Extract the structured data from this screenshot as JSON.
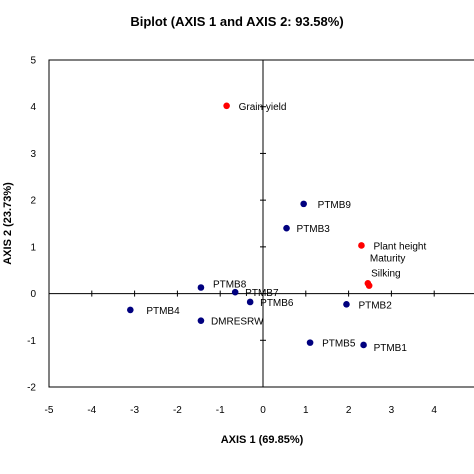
{
  "chart_data": {
    "type": "scatter",
    "title": "Biplot (AXIS 1 and AXIS 2: 93.58%)",
    "xlabel": "AXIS 1 (69.85%)",
    "ylabel": "AXIS 2 (23.73%)",
    "xlim": [
      -5,
      5
    ],
    "ylim": [
      -2,
      5
    ],
    "xticks": [
      "-5",
      "-4",
      "-3",
      "-2",
      "-1",
      "0",
      "1",
      "2",
      "3",
      "4"
    ],
    "yticks": [
      "-2",
      "-1",
      "0",
      "1",
      "2",
      "3",
      "4",
      "5"
    ],
    "grid": false,
    "series": [
      {
        "color": "#00007f",
        "points": [
          {
            "label": "PTMB9",
            "x": 0.95,
            "y": 1.92
          },
          {
            "label": "PTMB3",
            "x": 0.55,
            "y": 1.4
          },
          {
            "label": "PTMB8",
            "x": -1.45,
            "y": 0.13
          },
          {
            "label": "PTMB7",
            "x": -0.65,
            "y": 0.03
          },
          {
            "label": "PTMB6",
            "x": -0.3,
            "y": -0.18
          },
          {
            "label": "PTMB2",
            "x": 1.95,
            "y": -0.23
          },
          {
            "label": "PTMB4",
            "x": -3.1,
            "y": -0.35
          },
          {
            "label": "DMRESRW",
            "x": -1.45,
            "y": -0.58
          },
          {
            "label": "PTMB5",
            "x": 1.1,
            "y": -1.05
          },
          {
            "label": "PTMB1",
            "x": 2.35,
            "y": -1.1
          }
        ]
      },
      {
        "color": "#ff0000",
        "points": [
          {
            "label": "Grain yield",
            "x": -0.85,
            "y": 4.02
          },
          {
            "label": "Plant height",
            "x": 2.3,
            "y": 1.03
          },
          {
            "label": "Maturity",
            "x": 2.45,
            "y": 0.22
          },
          {
            "label": "Silking",
            "x": 2.48,
            "y": 0.17
          }
        ]
      }
    ]
  }
}
